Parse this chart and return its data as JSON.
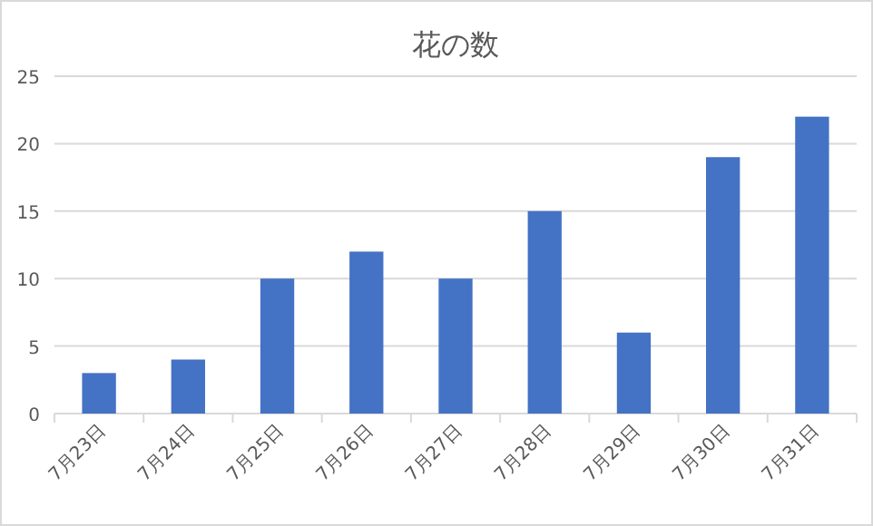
{
  "chart_data": {
    "type": "bar",
    "title": "花の数",
    "categories": [
      "7月23日",
      "7月24日",
      "7月25日",
      "7月26日",
      "7月27日",
      "7月28日",
      "7月29日",
      "7月30日",
      "7月31日"
    ],
    "values": [
      3,
      4,
      10,
      12,
      10,
      15,
      6,
      19,
      22
    ],
    "color": "#4472c4",
    "ylim": [
      0,
      25
    ],
    "yticks": [
      0,
      5,
      10,
      15,
      20,
      25
    ],
    "grid": "y"
  }
}
